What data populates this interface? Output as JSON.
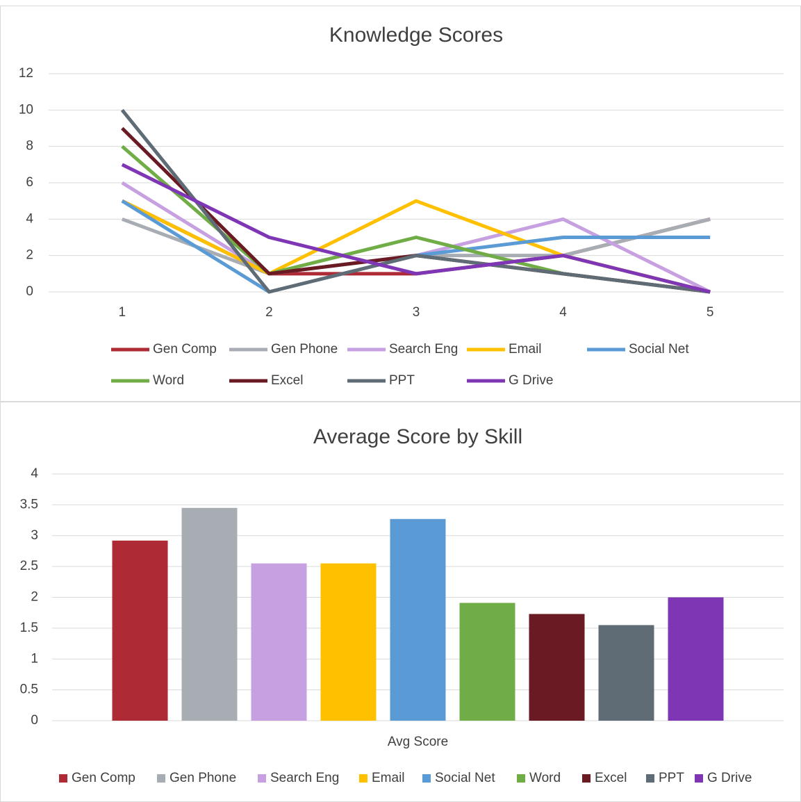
{
  "chart_data": [
    {
      "type": "line",
      "title": "Knowledge Scores",
      "categories": [
        "1",
        "2",
        "3",
        "4",
        "5"
      ],
      "ylim": [
        0,
        12
      ],
      "yticks": [
        0,
        2,
        4,
        6,
        8,
        10,
        12
      ],
      "grid": true,
      "legend": "bottom",
      "series": [
        {
          "name": "Gen Comp",
          "color": "#ae2a35",
          "values": [
            5,
            1,
            1,
            2,
            4
          ]
        },
        {
          "name": "Gen Phone",
          "color": "#a8adb4",
          "values": [
            4,
            1,
            2,
            2,
            4
          ]
        },
        {
          "name": "Search Eng",
          "color": "#c6a0e0",
          "values": [
            6,
            1,
            2,
            4,
            0
          ]
        },
        {
          "name": "Email",
          "color": "#ffc000",
          "values": [
            5,
            1,
            5,
            2,
            0
          ]
        },
        {
          "name": "Social Net",
          "color": "#5b9bd5",
          "values": [
            5,
            0,
            2,
            3,
            3
          ]
        },
        {
          "name": "Word",
          "color": "#70ad47",
          "values": [
            8,
            1,
            3,
            1,
            0
          ]
        },
        {
          "name": "Excel",
          "color": "#6a1a22",
          "values": [
            9,
            1,
            2,
            1,
            0
          ]
        },
        {
          "name": "PPT",
          "color": "#5f6b75",
          "values": [
            10,
            0,
            2,
            1,
            0
          ]
        },
        {
          "name": "G Drive",
          "color": "#7f36b5",
          "values": [
            7,
            3,
            1,
            2,
            0
          ]
        }
      ]
    },
    {
      "type": "bar",
      "title": "Average Score by Skill",
      "categories": [
        "Avg Score"
      ],
      "ylim": [
        0,
        4
      ],
      "yticks": [
        0,
        0.5,
        1,
        1.5,
        2,
        2.5,
        3,
        3.5,
        4
      ],
      "grid": true,
      "legend": "bottom",
      "series": [
        {
          "name": "Gen Comp",
          "color": "#ae2a35",
          "values": [
            2.92
          ]
        },
        {
          "name": "Gen Phone",
          "color": "#a8adb4",
          "values": [
            3.45
          ]
        },
        {
          "name": "Search Eng",
          "color": "#c6a0e0",
          "values": [
            2.55
          ]
        },
        {
          "name": "Email",
          "color": "#ffc000",
          "values": [
            2.55
          ]
        },
        {
          "name": "Social Net",
          "color": "#5b9bd5",
          "values": [
            3.27
          ]
        },
        {
          "name": "Word",
          "color": "#70ad47",
          "values": [
            1.91
          ]
        },
        {
          "name": "Excel",
          "color": "#6a1a22",
          "values": [
            1.73
          ]
        },
        {
          "name": "PPT",
          "color": "#5f6b75",
          "values": [
            1.55
          ]
        },
        {
          "name": "G Drive",
          "color": "#7f36b5",
          "values": [
            2.0
          ]
        }
      ]
    }
  ]
}
